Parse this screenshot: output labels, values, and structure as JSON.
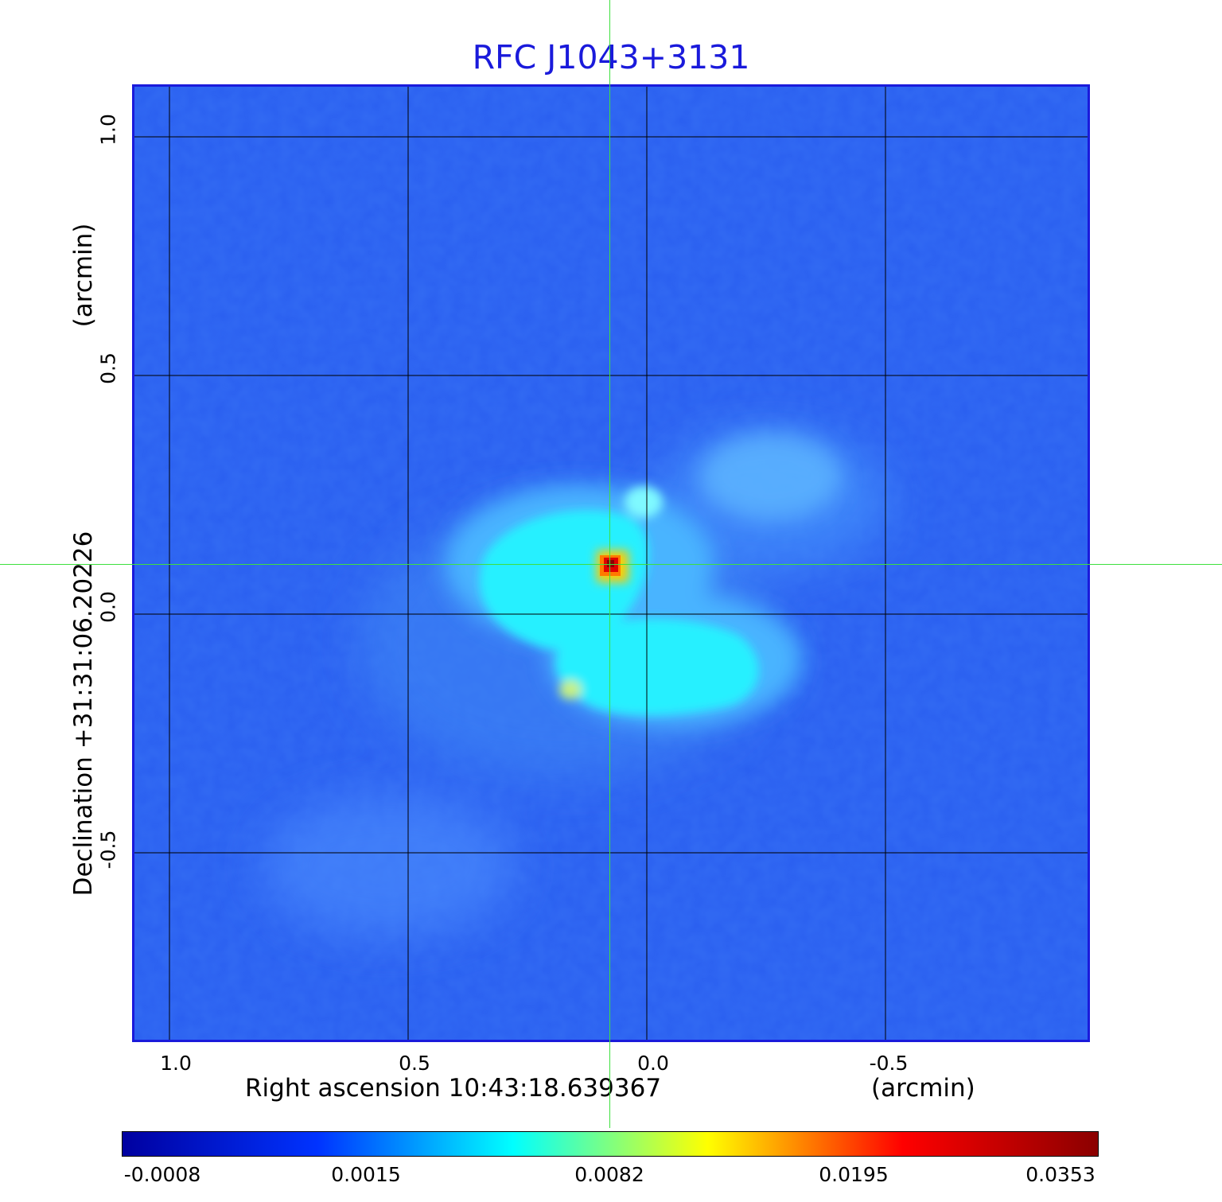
{
  "title": "RFC J1043+3131",
  "x_axis": {
    "label": "Right ascension  10:43:18.639367",
    "unit": "(arcmin)",
    "ticks": [
      "1.0",
      "0.5",
      "0.0",
      "-0.5"
    ]
  },
  "y_axis": {
    "label": "Declination  +31:31:06.20226",
    "unit": "(arcmin)",
    "ticks": [
      "1.0",
      "0.5",
      "0.0",
      "-0.5"
    ]
  },
  "colorbar": {
    "ticks": [
      "-0.0008",
      "0.0015",
      "0.0082",
      "0.0195",
      "0.0353"
    ],
    "colors": [
      "#0000a0",
      "#0033ff",
      "#00ffff",
      "#ffff00",
      "#ff0000",
      "#8b0000"
    ]
  },
  "colors": {
    "title": "#1a1adb",
    "frame": "#1a1adb",
    "background": "#2a5ff0",
    "crosshair": "#3ee03e",
    "grid": "#000000"
  }
}
